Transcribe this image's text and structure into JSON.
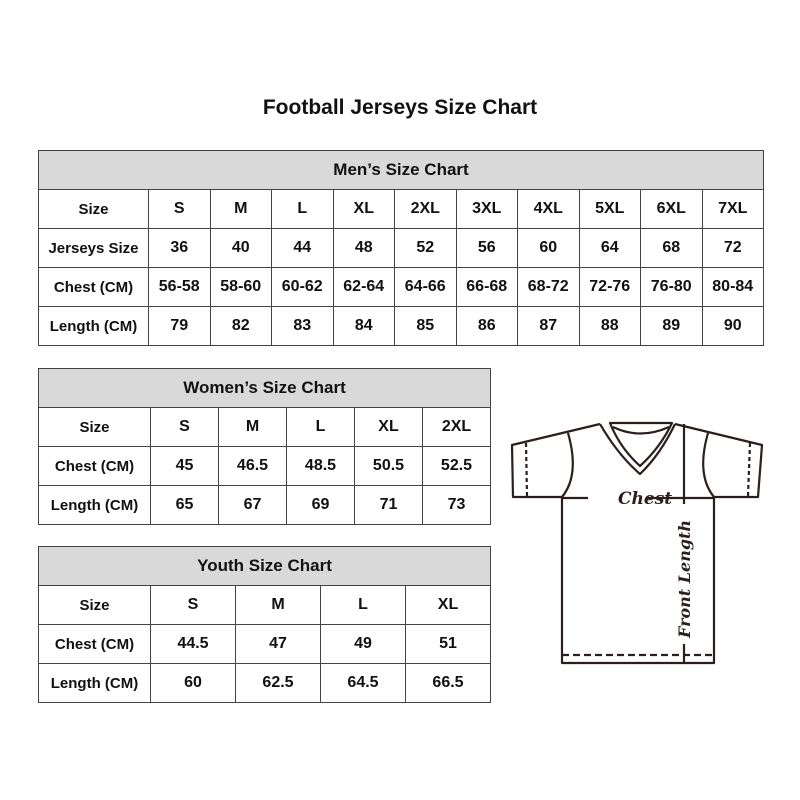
{
  "title": "Football Jerseys Size Chart",
  "men": {
    "heading": "Men’s Size Chart",
    "rows": [
      {
        "label": "Size",
        "values": [
          "S",
          "M",
          "L",
          "XL",
          "2XL",
          "3XL",
          "4XL",
          "5XL",
          "6XL",
          "7XL"
        ]
      },
      {
        "label": "Jerseys Size",
        "values": [
          "36",
          "40",
          "44",
          "48",
          "52",
          "56",
          "60",
          "64",
          "68",
          "72"
        ]
      },
      {
        "label": "Chest (CM)",
        "values": [
          "56-58",
          "58-60",
          "60-62",
          "62-64",
          "64-66",
          "66-68",
          "68-72",
          "72-76",
          "76-80",
          "80-84"
        ]
      },
      {
        "label": "Length (CM)",
        "values": [
          "79",
          "82",
          "83",
          "84",
          "85",
          "86",
          "87",
          "88",
          "89",
          "90"
        ]
      }
    ]
  },
  "women": {
    "heading": "Women’s Size Chart",
    "rows": [
      {
        "label": "Size",
        "values": [
          "S",
          "M",
          "L",
          "XL",
          "2XL"
        ]
      },
      {
        "label": "Chest (CM)",
        "values": [
          "45",
          "46.5",
          "48.5",
          "50.5",
          "52.5"
        ]
      },
      {
        "label": "Length (CM)",
        "values": [
          "65",
          "67",
          "69",
          "71",
          "73"
        ]
      }
    ]
  },
  "youth": {
    "heading": "Youth Size Chart",
    "rows": [
      {
        "label": "Size",
        "values": [
          "S",
          "M",
          "L",
          "XL"
        ]
      },
      {
        "label": "Chest (CM)",
        "values": [
          "44.5",
          "47",
          "49",
          "51"
        ]
      },
      {
        "label": "Length (CM)",
        "values": [
          "60",
          "62.5",
          "64.5",
          "66.5"
        ]
      }
    ]
  },
  "diagram": {
    "chest_label": "Chest",
    "length_label": "Front Length"
  },
  "colors": {
    "header_bg": "#d9d9d9",
    "border": "#444444",
    "jersey_line": "#2a1f1c"
  }
}
